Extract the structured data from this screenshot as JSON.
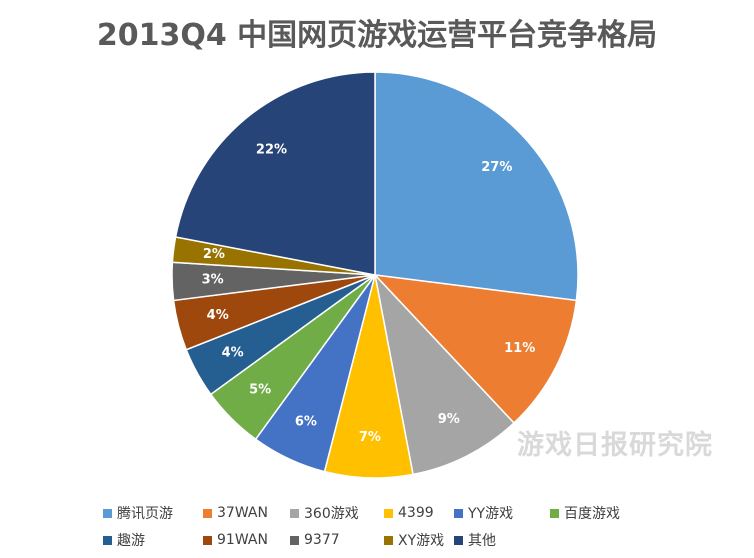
{
  "chart_data": {
    "type": "pie",
    "title": "2013Q4 中国网页游戏运营平台竞争格局",
    "watermark": "游戏日报研究院",
    "legend_position": "bottom",
    "slices": [
      {
        "name": "腾讯页游",
        "value": 27,
        "label": "27%",
        "color": "#5b9bd5"
      },
      {
        "name": "37WAN",
        "value": 11,
        "label": "11%",
        "color": "#ed7d31"
      },
      {
        "name": "360游戏",
        "value": 9,
        "label": "9%",
        "color": "#a5a5a5"
      },
      {
        "name": "4399",
        "value": 7,
        "label": "7%",
        "color": "#ffc000"
      },
      {
        "name": "YY游戏",
        "value": 6,
        "label": "6%",
        "color": "#4472c4"
      },
      {
        "name": "百度游戏",
        "value": 5,
        "label": "5%",
        "color": "#70ad47"
      },
      {
        "name": "趣游",
        "value": 4,
        "label": "4%",
        "color": "#255e91"
      },
      {
        "name": "91WAN",
        "value": 4,
        "label": "4%",
        "color": "#9e480e"
      },
      {
        "name": "9377",
        "value": 3,
        "label": "3%",
        "color": "#636363"
      },
      {
        "name": "XY游戏",
        "value": 2,
        "label": "2%",
        "color": "#997300"
      },
      {
        "name": "其他",
        "value": 22,
        "label": "22%",
        "color": "#264478"
      }
    ]
  }
}
